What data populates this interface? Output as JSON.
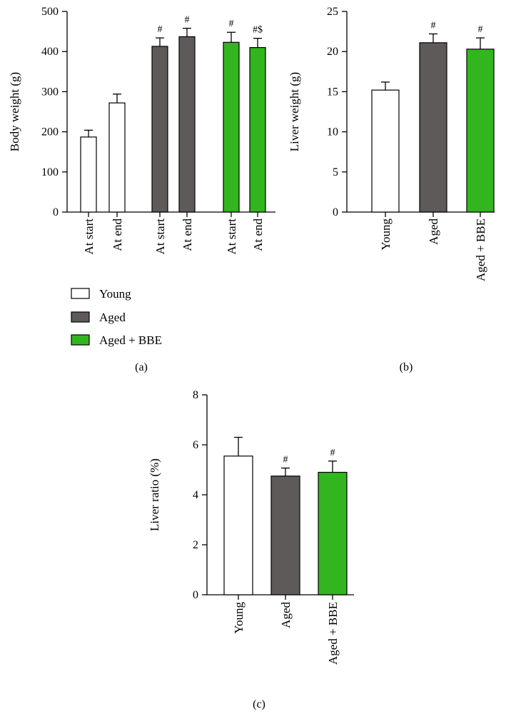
{
  "colors": {
    "young": "#ffffff",
    "aged": "#5f5a5a",
    "aged_bbe": "#33b51f"
  },
  "legend": [
    {
      "key": "young",
      "label": "Young"
    },
    {
      "key": "aged",
      "label": "Aged"
    },
    {
      "key": "aged_bbe",
      "label": "Aged + BBE"
    }
  ],
  "chart_data": [
    {
      "panel": "(a)",
      "type": "bar",
      "ylabel": "Body weight (g)",
      "ylim": [
        0,
        500
      ],
      "yticks": [
        0,
        100,
        200,
        300,
        400,
        500
      ],
      "bars": [
        {
          "label": "At start",
          "group": "young",
          "value": 187,
          "error": 17,
          "sig": ""
        },
        {
          "label": "At end",
          "group": "young",
          "value": 272,
          "error": 22,
          "sig": ""
        },
        {
          "label": "At start",
          "group": "aged",
          "value": 413,
          "error": 21,
          "sig": "#"
        },
        {
          "label": "At end",
          "group": "aged",
          "value": 437,
          "error": 21,
          "sig": "#"
        },
        {
          "label": "At start",
          "group": "aged_bbe",
          "value": 423,
          "error": 25,
          "sig": "#"
        },
        {
          "label": "At end",
          "group": "aged_bbe",
          "value": 410,
          "error": 23,
          "sig": "#$"
        }
      ]
    },
    {
      "panel": "(b)",
      "type": "bar",
      "ylabel": "Liver weight (g)",
      "ylim": [
        0,
        25
      ],
      "yticks": [
        0,
        5,
        10,
        15,
        20,
        25
      ],
      "bars": [
        {
          "label": "Young",
          "group": "young",
          "value": 15.2,
          "error": 1.0,
          "sig": ""
        },
        {
          "label": "Aged",
          "group": "aged",
          "value": 21.1,
          "error": 1.1,
          "sig": "#"
        },
        {
          "label": "Aged + BBE",
          "group": "aged_bbe",
          "value": 20.3,
          "error": 1.4,
          "sig": "#"
        }
      ]
    },
    {
      "panel": "(c)",
      "type": "bar",
      "ylabel": "Liver ratio (%)",
      "ylim": [
        0,
        8
      ],
      "yticks": [
        0,
        2,
        4,
        6,
        8
      ],
      "bars": [
        {
          "label": "Young",
          "group": "young",
          "value": 5.55,
          "error": 0.75,
          "sig": ""
        },
        {
          "label": "Aged",
          "group": "aged",
          "value": 4.75,
          "error": 0.32,
          "sig": "#"
        },
        {
          "label": "Aged + BBE",
          "group": "aged_bbe",
          "value": 4.9,
          "error": 0.45,
          "sig": "#"
        }
      ]
    }
  ]
}
